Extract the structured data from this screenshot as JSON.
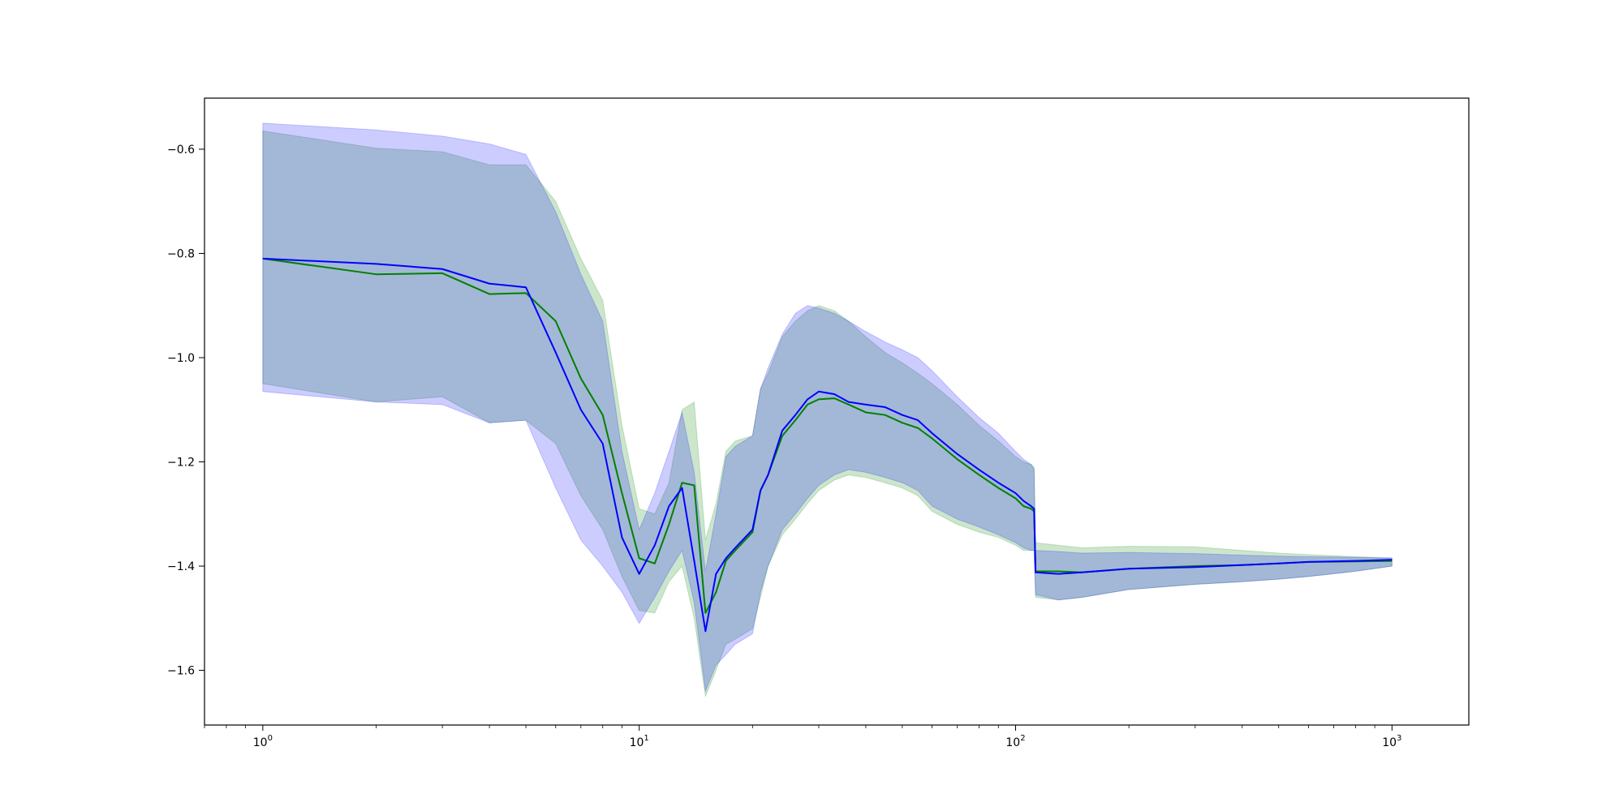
{
  "chart_data": {
    "type": "line",
    "title": "",
    "xlabel": "",
    "ylabel": "",
    "x_scale": "log",
    "xlim": [
      0.7,
      1600
    ],
    "ylim": [
      -1.705,
      -0.502
    ],
    "grid": false,
    "legend": "none",
    "x_ticks": [
      {
        "value": 1,
        "base": "10",
        "exp": "0"
      },
      {
        "value": 10,
        "base": "10",
        "exp": "1"
      },
      {
        "value": 100,
        "base": "10",
        "exp": "2"
      },
      {
        "value": 1000,
        "base": "10",
        "exp": "3"
      }
    ],
    "y_ticks": [
      {
        "value": -0.6,
        "label": "−0.6"
      },
      {
        "value": -0.8,
        "label": "−0.8"
      },
      {
        "value": -1.0,
        "label": "−1.0"
      },
      {
        "value": -1.2,
        "label": "−1.2"
      },
      {
        "value": -1.4,
        "label": "−1.4"
      },
      {
        "value": -1.6,
        "label": "−1.6"
      }
    ],
    "x": [
      1,
      2,
      3,
      4,
      5,
      6,
      7,
      8,
      9,
      10,
      11,
      12,
      13,
      14,
      15,
      16,
      17,
      18,
      20,
      21,
      22,
      24,
      26,
      28,
      30,
      33,
      36,
      40,
      45,
      50,
      55,
      60,
      70,
      80,
      90,
      100,
      105,
      110,
      112,
      113,
      130,
      150,
      200,
      300,
      400,
      500,
      600,
      800,
      1000
    ],
    "series": [
      {
        "color": "#008000",
        "band_color": "#008000",
        "band_opacity": 0.2,
        "mean": [
          -0.81,
          -0.84,
          -0.838,
          -0.878,
          -0.876,
          -0.93,
          -1.04,
          -1.11,
          -1.26,
          -1.385,
          -1.395,
          -1.32,
          -1.24,
          -1.245,
          -1.49,
          -1.45,
          -1.39,
          -1.37,
          -1.335,
          -1.255,
          -1.225,
          -1.15,
          -1.12,
          -1.09,
          -1.08,
          -1.078,
          -1.09,
          -1.105,
          -1.11,
          -1.125,
          -1.135,
          -1.155,
          -1.195,
          -1.225,
          -1.25,
          -1.27,
          -1.285,
          -1.29,
          -1.295,
          -1.41,
          -1.41,
          -1.412,
          -1.405,
          -1.4,
          -1.398,
          -1.395,
          -1.392,
          -1.391,
          -1.39
        ],
        "lower": [
          -1.05,
          -1.085,
          -1.075,
          -1.125,
          -1.12,
          -1.165,
          -1.265,
          -1.33,
          -1.42,
          -1.485,
          -1.49,
          -1.43,
          -1.4,
          -1.5,
          -1.65,
          -1.6,
          -1.55,
          -1.54,
          -1.52,
          -1.46,
          -1.4,
          -1.34,
          -1.31,
          -1.28,
          -1.255,
          -1.235,
          -1.225,
          -1.23,
          -1.24,
          -1.25,
          -1.265,
          -1.295,
          -1.32,
          -1.335,
          -1.345,
          -1.36,
          -1.37,
          -1.37,
          -1.37,
          -1.46,
          -1.465,
          -1.46,
          -1.445,
          -1.435,
          -1.43,
          -1.425,
          -1.42,
          -1.41,
          -1.4
        ],
        "upper": [
          -0.565,
          -0.598,
          -0.605,
          -0.63,
          -0.63,
          -0.7,
          -0.81,
          -0.89,
          -1.13,
          -1.29,
          -1.3,
          -1.24,
          -1.1,
          -1.085,
          -1.35,
          -1.28,
          -1.18,
          -1.16,
          -1.15,
          -1.06,
          -1.03,
          -0.96,
          -0.93,
          -0.91,
          -0.9,
          -0.91,
          -0.93,
          -0.96,
          -0.99,
          -1.01,
          -1.03,
          -1.05,
          -1.09,
          -1.13,
          -1.16,
          -1.19,
          -1.2,
          -1.205,
          -1.21,
          -1.355,
          -1.36,
          -1.365,
          -1.362,
          -1.363,
          -1.37,
          -1.375,
          -1.378,
          -1.382,
          -1.384
        ]
      },
      {
        "color": "#0000ff",
        "band_color": "#0000ff",
        "band_opacity": 0.2,
        "mean": [
          -0.81,
          -0.82,
          -0.83,
          -0.858,
          -0.865,
          -0.99,
          -1.1,
          -1.165,
          -1.345,
          -1.415,
          -1.36,
          -1.285,
          -1.25,
          -1.39,
          -1.525,
          -1.415,
          -1.385,
          -1.365,
          -1.33,
          -1.255,
          -1.225,
          -1.14,
          -1.11,
          -1.08,
          -1.065,
          -1.07,
          -1.085,
          -1.09,
          -1.095,
          -1.11,
          -1.12,
          -1.145,
          -1.185,
          -1.215,
          -1.24,
          -1.26,
          -1.275,
          -1.285,
          -1.29,
          -1.412,
          -1.415,
          -1.412,
          -1.405,
          -1.402,
          -1.398,
          -1.395,
          -1.392,
          -1.39,
          -1.388
        ],
        "lower": [
          -1.065,
          -1.085,
          -1.09,
          -1.125,
          -1.12,
          -1.25,
          -1.35,
          -1.4,
          -1.45,
          -1.51,
          -1.46,
          -1.41,
          -1.37,
          -1.47,
          -1.64,
          -1.59,
          -1.57,
          -1.55,
          -1.53,
          -1.45,
          -1.4,
          -1.33,
          -1.3,
          -1.27,
          -1.245,
          -1.225,
          -1.215,
          -1.22,
          -1.23,
          -1.24,
          -1.255,
          -1.285,
          -1.31,
          -1.325,
          -1.34,
          -1.355,
          -1.365,
          -1.37,
          -1.37,
          -1.455,
          -1.465,
          -1.46,
          -1.445,
          -1.435,
          -1.43,
          -1.425,
          -1.42,
          -1.41,
          -1.4
        ],
        "upper": [
          -0.55,
          -0.563,
          -0.575,
          -0.59,
          -0.61,
          -0.72,
          -0.84,
          -0.93,
          -1.18,
          -1.33,
          -1.26,
          -1.18,
          -1.105,
          -1.22,
          -1.41,
          -1.3,
          -1.19,
          -1.17,
          -1.15,
          -1.06,
          -1.02,
          -0.955,
          -0.915,
          -0.9,
          -0.905,
          -0.915,
          -0.93,
          -0.95,
          -0.97,
          -0.985,
          -1.0,
          -1.025,
          -1.075,
          -1.115,
          -1.145,
          -1.18,
          -1.195,
          -1.205,
          -1.215,
          -1.37,
          -1.372,
          -1.375,
          -1.374,
          -1.376,
          -1.379,
          -1.381,
          -1.382,
          -1.383,
          -1.385
        ]
      }
    ]
  }
}
